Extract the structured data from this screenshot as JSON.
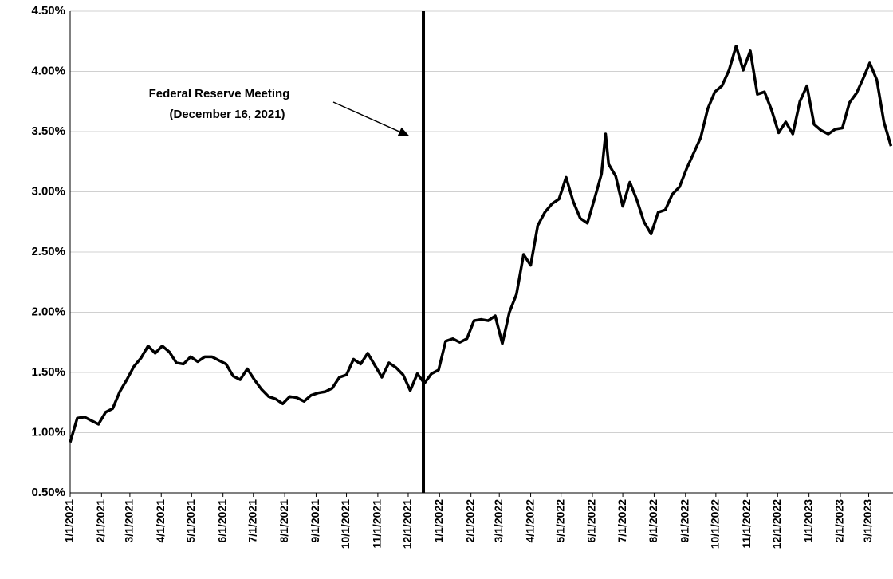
{
  "chart_data": {
    "type": "line",
    "color": "#000000",
    "grid": true,
    "annotations": [
      {
        "x": "12/16/2021",
        "lines": [
          "Federal Reserve Meeting",
          "(December 16, 2021)"
        ]
      }
    ],
    "xlim": [
      "1/1/2021",
      "3/25/2023"
    ],
    "xticks": [
      "1/1/2021",
      "2/1/2021",
      "3/1/2021",
      "4/1/2021",
      "5/1/2021",
      "6/1/2021",
      "7/1/2021",
      "8/1/2021",
      "9/1/2021",
      "10/1/2021",
      "11/1/2021",
      "12/1/2021",
      "1/1/2022",
      "2/1/2022",
      "3/1/2022",
      "4/1/2022",
      "5/1/2022",
      "6/1/2022",
      "7/1/2022",
      "8/1/2022",
      "9/1/2022",
      "10/1/2022",
      "11/1/2022",
      "12/1/2022",
      "1/1/2023",
      "2/1/2023",
      "3/1/2023"
    ],
    "ylim": [
      0.5,
      4.5
    ],
    "yticks": [
      {
        "value": 0.5,
        "label": "0.50%"
      },
      {
        "value": 1.0,
        "label": "1.00%"
      },
      {
        "value": 1.5,
        "label": "1.50%"
      },
      {
        "value": 2.0,
        "label": "2.00%"
      },
      {
        "value": 2.5,
        "label": "2.50%"
      },
      {
        "value": 3.0,
        "label": "3.00%"
      },
      {
        "value": 3.5,
        "label": "3.50%"
      },
      {
        "value": 4.0,
        "label": "4.00%"
      },
      {
        "value": 4.5,
        "label": "4.50%"
      }
    ],
    "x": [
      "1/1/2021",
      "1/8/2021",
      "1/15/2021",
      "1/22/2021",
      "1/29/2021",
      "2/5/2021",
      "2/12/2021",
      "2/19/2021",
      "2/26/2021",
      "3/5/2021",
      "3/12/2021",
      "3/19/2021",
      "3/26/2021",
      "4/2/2021",
      "4/9/2021",
      "4/16/2021",
      "4/23/2021",
      "4/30/2021",
      "5/7/2021",
      "5/14/2021",
      "5/21/2021",
      "5/28/2021",
      "6/4/2021",
      "6/11/2021",
      "6/18/2021",
      "6/25/2021",
      "7/2/2021",
      "7/9/2021",
      "7/16/2021",
      "7/23/2021",
      "7/30/2021",
      "8/6/2021",
      "8/13/2021",
      "8/20/2021",
      "8/27/2021",
      "9/3/2021",
      "9/10/2021",
      "9/17/2021",
      "9/24/2021",
      "10/1/2021",
      "10/8/2021",
      "10/15/2021",
      "10/22/2021",
      "10/29/2021",
      "11/5/2021",
      "11/12/2021",
      "11/19/2021",
      "11/26/2021",
      "12/3/2021",
      "12/10/2021",
      "12/17/2021",
      "12/24/2021",
      "12/31/2021",
      "1/7/2022",
      "1/14/2022",
      "1/21/2022",
      "1/28/2022",
      "2/4/2022",
      "2/11/2022",
      "2/18/2022",
      "2/25/2022",
      "3/4/2022",
      "3/11/2022",
      "3/18/2022",
      "3/25/2022",
      "4/1/2022",
      "4/8/2022",
      "4/15/2022",
      "4/22/2022",
      "4/29/2022",
      "5/6/2022",
      "5/13/2022",
      "5/20/2022",
      "5/27/2022",
      "6/3/2022",
      "6/10/2022",
      "6/14/2022",
      "6/17/2022",
      "6/24/2022",
      "7/1/2022",
      "7/8/2022",
      "7/15/2022",
      "7/22/2022",
      "7/29/2022",
      "8/5/2022",
      "8/12/2022",
      "8/19/2022",
      "8/26/2022",
      "9/2/2022",
      "9/9/2022",
      "9/16/2022",
      "9/23/2022",
      "9/30/2022",
      "10/7/2022",
      "10/14/2022",
      "10/21/2022",
      "10/28/2022",
      "11/4/2022",
      "11/11/2022",
      "11/18/2022",
      "11/25/2022",
      "12/2/2022",
      "12/9/2022",
      "12/16/2022",
      "12/23/2022",
      "12/30/2022",
      "1/6/2023",
      "1/13/2023",
      "1/20/2023",
      "1/27/2023",
      "2/3/2023",
      "2/10/2023",
      "2/17/2023",
      "2/24/2023",
      "3/2/2023",
      "3/9/2023",
      "3/16/2023",
      "3/23/2023"
    ],
    "values": [
      0.92,
      1.12,
      1.13,
      1.1,
      1.07,
      1.17,
      1.2,
      1.34,
      1.44,
      1.55,
      1.62,
      1.72,
      1.66,
      1.72,
      1.67,
      1.58,
      1.57,
      1.63,
      1.59,
      1.63,
      1.63,
      1.6,
      1.57,
      1.47,
      1.44,
      1.53,
      1.44,
      1.36,
      1.3,
      1.28,
      1.24,
      1.3,
      1.29,
      1.26,
      1.31,
      1.33,
      1.34,
      1.37,
      1.46,
      1.48,
      1.61,
      1.57,
      1.66,
      1.56,
      1.46,
      1.58,
      1.54,
      1.48,
      1.35,
      1.49,
      1.41,
      1.49,
      1.52,
      1.76,
      1.78,
      1.75,
      1.78,
      1.93,
      1.94,
      1.93,
      1.97,
      1.74,
      2.0,
      2.15,
      2.48,
      2.39,
      2.72,
      2.83,
      2.9,
      2.94,
      3.12,
      2.92,
      2.78,
      2.74,
      2.94,
      3.15,
      3.48,
      3.23,
      3.13,
      2.88,
      3.08,
      2.93,
      2.75,
      2.65,
      2.83,
      2.85,
      2.98,
      3.04,
      3.19,
      3.32,
      3.45,
      3.69,
      3.83,
      3.88,
      4.01,
      4.21,
      4.01,
      4.17,
      3.81,
      3.83,
      3.68,
      3.49,
      3.58,
      3.48,
      3.75,
      3.88,
      3.56,
      3.51,
      3.48,
      3.52,
      3.53,
      3.74,
      3.82,
      3.95,
      4.07,
      3.93,
      3.58,
      3.38
    ]
  }
}
